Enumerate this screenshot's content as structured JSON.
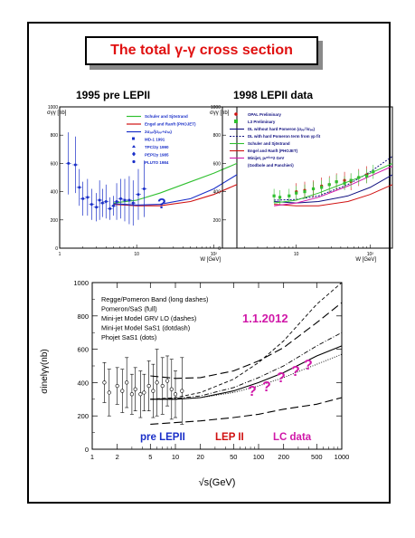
{
  "title": "The total γ-γ cross section",
  "colors": {
    "title": "#e01010",
    "blue": "#1a2fc8",
    "red": "#d01010",
    "magenta": "#d018a8",
    "green": "#30c030",
    "navy": "#101080"
  },
  "panel_left": {
    "heading": "1995 pre LEPII",
    "question": "?"
  },
  "panel_right": {
    "heading": "1998 LEPII data"
  },
  "chart_data": [
    {
      "type": "scatter",
      "title": "1995 pre LEPII",
      "xlabel": "W [GeV]",
      "ylabel": "σγγ [nb]",
      "xscale": "log",
      "xlim": [
        1,
        200
      ],
      "ylim": [
        0,
        1000
      ],
      "xticks": [
        "1",
        "10",
        "10²"
      ],
      "yticks": [
        "0",
        "200",
        "400",
        "600",
        "800",
        "1000"
      ],
      "legend": [
        {
          "label": "Schuler and Sjöstrand",
          "kind": "line",
          "color": "#30c030"
        },
        {
          "label": "Engel and Ranft (PHOJET)",
          "kind": "line",
          "color": "#d01010"
        },
        {
          "label": "2σₚₚ/(σₚₚ+σₙₙ)",
          "kind": "line",
          "color": "#1a2fc8"
        },
        {
          "label": "MD-1 1991",
          "kind": "square"
        },
        {
          "label": "TPC/2γ 1990",
          "kind": "triangle"
        },
        {
          "label": "PEP/2γ 1985",
          "kind": "diamond"
        },
        {
          "label": "PLUTO 1984",
          "kind": "circle"
        }
      ],
      "series": [
        {
          "name": "data",
          "x": [
            1.3,
            1.6,
            1.8,
            2.0,
            2.3,
            2.6,
            3.0,
            3.3,
            3.6,
            4.0,
            4.5,
            5.0,
            5.5,
            6.2,
            7.0,
            8.0,
            9.0,
            10.5,
            12.5
          ],
          "y": [
            600,
            590,
            430,
            350,
            360,
            310,
            290,
            340,
            320,
            330,
            280,
            300,
            330,
            350,
            340,
            340,
            320,
            380,
            420
          ],
          "err": [
            220,
            200,
            130,
            120,
            130,
            110,
            100,
            140,
            100,
            120,
            80,
            70,
            130,
            140,
            150,
            170,
            160,
            180,
            200
          ]
        },
        {
          "name": "Schuler and Sjöstrand",
          "x": [
            5,
            10,
            20,
            50,
            100,
            200
          ],
          "y": [
            320,
            340,
            390,
            470,
            530,
            600
          ]
        },
        {
          "name": "Engel and Ranft (PHOJET)",
          "x": [
            5,
            10,
            20,
            50,
            100,
            200
          ],
          "y": [
            310,
            300,
            300,
            330,
            380,
            450
          ]
        },
        {
          "name": "2σₚₚ/(σₚₚ+σₙₙ)",
          "x": [
            5,
            10,
            20,
            50,
            100,
            200
          ],
          "y": [
            315,
            305,
            310,
            350,
            420,
            520
          ]
        }
      ]
    },
    {
      "type": "scatter",
      "title": "1998 LEPII data",
      "xlabel": "W [GeV]",
      "ylabel": "σγγ [nb]",
      "xscale": "log",
      "xlim": [
        1,
        200
      ],
      "ylim": [
        0,
        1000
      ],
      "xticks": [
        "10",
        "10²"
      ],
      "yticks": [
        "0",
        "200",
        "400",
        "600",
        "800",
        "1000"
      ],
      "legend": [
        {
          "label": "OPAL Preliminary",
          "kind": "circle",
          "color": "#d01010"
        },
        {
          "label": "L3 Preliminary",
          "kind": "square",
          "color": "#30c030"
        },
        {
          "label": "DL without hard Pomeron (σₚₚ²/σₚₚ)",
          "kind": "line",
          "color": "#101080"
        },
        {
          "label": "DL with hard Pomeron term from γp fit",
          "kind": "dashed",
          "color": "#101080"
        },
        {
          "label": "Schuler and Sjöstrand",
          "kind": "line",
          "color": "#30c030"
        },
        {
          "label": "Engel and Ranft (PHOJET)",
          "kind": "line",
          "color": "#d01010"
        },
        {
          "label": "Minijet, pₜᵐⁱⁿ=2 GeV",
          "kind": "line",
          "color": "#d018a8"
        },
        {
          "label": "(Godbole and Panchieri)",
          "kind": "none"
        }
      ],
      "series": [
        {
          "name": "OPAL Preliminary",
          "x": [
            10,
            13,
            17,
            22,
            28,
            35,
            45,
            55,
            70,
            90
          ],
          "y": [
            400,
            410,
            420,
            440,
            450,
            470,
            480,
            470,
            500,
            520
          ]
        },
        {
          "name": "L3 Preliminary",
          "x": [
            5,
            6,
            8,
            10,
            13,
            17,
            22,
            28,
            35,
            45,
            55,
            70,
            90,
            110
          ],
          "y": [
            370,
            360,
            370,
            390,
            400,
            420,
            430,
            450,
            470,
            460,
            480,
            500,
            510,
            540
          ]
        }
      ]
    },
    {
      "type": "line",
      "xlabel": "√s(GeV)",
      "ylabel": "σinelγγ(nb)",
      "xscale": "log",
      "xlim": [
        1,
        1000
      ],
      "ylim": [
        0,
        1000
      ],
      "xticks": [
        "1",
        "2",
        "5",
        "10",
        "20",
        "50",
        "100",
        "200",
        "500",
        "1000"
      ],
      "yticks": [
        "0",
        "200",
        "400",
        "600",
        "800",
        "1000"
      ],
      "legend": [
        {
          "label": "Regge/Pomeron Band (long dashes)"
        },
        {
          "label": "Pomeron/SaS (full)"
        },
        {
          "label": "Mini-jet Model GRV LO (dashes)"
        },
        {
          "label": "Mini-jet Model SaS1  (dotdash)"
        },
        {
          "label": "Phojet SaS1 (dots)"
        }
      ],
      "annotations": [
        "1.1.2012",
        "pre LEPII",
        "LEP II",
        "LC data",
        "?"
      ],
      "series": [
        {
          "name": "Regge/Pomeron Band upper",
          "x": [
            5,
            10,
            20,
            50,
            100,
            200,
            500,
            1000
          ],
          "y": [
            440,
            425,
            430,
            470,
            530,
            610,
            760,
            880
          ]
        },
        {
          "name": "Regge/Pomeron Band lower",
          "x": [
            5,
            10,
            20,
            50,
            100,
            200,
            500,
            1000
          ],
          "y": [
            150,
            160,
            170,
            190,
            210,
            240,
            270,
            310
          ]
        },
        {
          "name": "Pomeron/SaS",
          "x": [
            5,
            10,
            20,
            50,
            100,
            200,
            500,
            1000
          ],
          "y": [
            300,
            300,
            310,
            350,
            400,
            460,
            560,
            620
          ]
        },
        {
          "name": "Mini-jet Model GRV LO",
          "x": [
            5,
            10,
            20,
            50,
            100,
            200,
            500,
            1000
          ],
          "y": [
            300,
            310,
            340,
            420,
            520,
            650,
            870,
            1000
          ]
        },
        {
          "name": "Mini-jet Model SaS1",
          "x": [
            5,
            10,
            20,
            50,
            100,
            200,
            500,
            1000
          ],
          "y": [
            300,
            305,
            320,
            370,
            430,
            500,
            620,
            700
          ]
        },
        {
          "name": "Phojet SaS1",
          "x": [
            5,
            10,
            20,
            50,
            100,
            200,
            500,
            1000
          ],
          "y": [
            300,
            300,
            310,
            340,
            380,
            430,
            510,
            570
          ]
        },
        {
          "name": "pre LEPII data",
          "x": [
            1.4,
            1.6,
            2.0,
            2.3,
            2.6,
            3.0,
            3.3,
            3.8,
            4.2,
            4.8,
            5.4,
            6.0,
            7.0,
            8.0,
            9.0,
            10.0,
            12.0
          ],
          "y": [
            400,
            340,
            380,
            350,
            400,
            330,
            360,
            330,
            340,
            380,
            350,
            400,
            380,
            410,
            360,
            330,
            350
          ],
          "err": [
            120,
            140,
            110,
            130,
            150,
            120,
            130,
            140,
            110,
            150,
            160,
            200,
            170,
            150,
            180,
            140,
            200
          ]
        }
      ]
    }
  ]
}
